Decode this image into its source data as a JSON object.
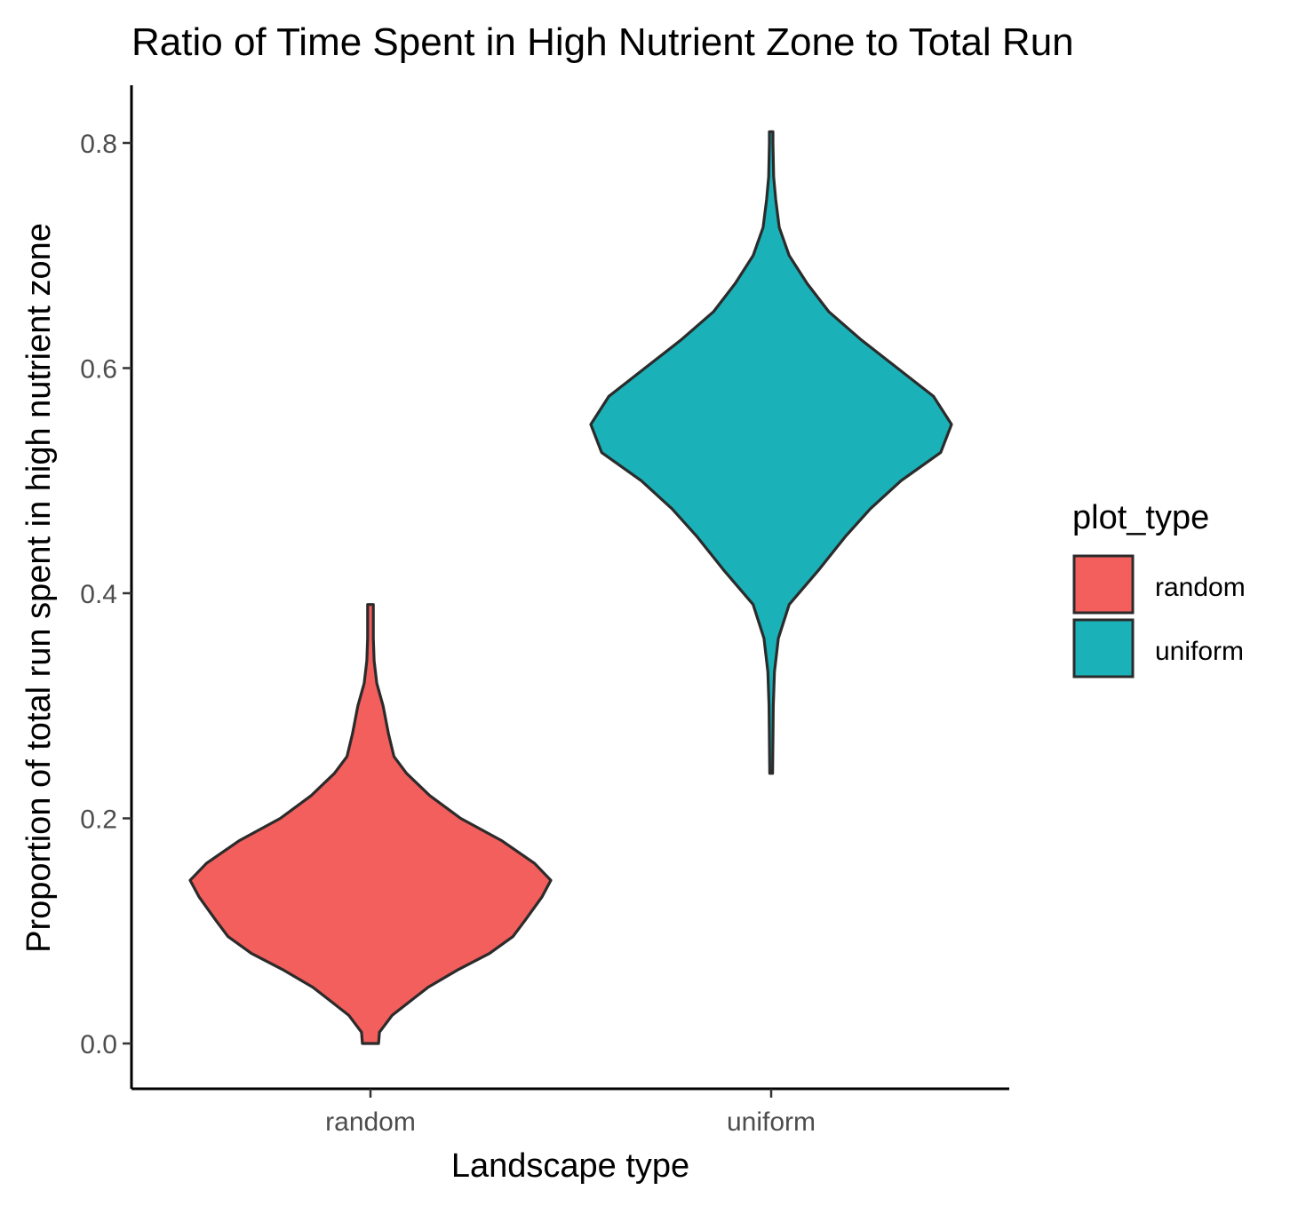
{
  "chart_data": {
    "type": "violin",
    "title": "Ratio of Time Spent in High Nutrient Zone to Total Run",
    "xlabel": "Landscape type",
    "ylabel": "Proportion of total run spent in high nutrient zone",
    "categories": [
      "random",
      "uniform"
    ],
    "ylim": [
      -0.04,
      0.85
    ],
    "yticks": [
      0.0,
      0.2,
      0.4,
      0.6,
      0.8
    ],
    "ytick_labels": [
      "0.0",
      "0.2",
      "0.4",
      "0.6",
      "0.8"
    ],
    "grid": false,
    "legend": {
      "title": "plot_type",
      "position": "right",
      "entries": [
        "random",
        "uniform"
      ]
    },
    "series": [
      {
        "category": "random",
        "color": "#F25F5C",
        "min": 0.0,
        "max": 0.39,
        "density_profile": [
          [
            0.0,
            0.045
          ],
          [
            0.01,
            0.05
          ],
          [
            0.025,
            0.12
          ],
          [
            0.04,
            0.24
          ],
          [
            0.05,
            0.32
          ],
          [
            0.065,
            0.48
          ],
          [
            0.08,
            0.66
          ],
          [
            0.095,
            0.79
          ],
          [
            0.11,
            0.86
          ],
          [
            0.13,
            0.95
          ],
          [
            0.145,
            1.0
          ],
          [
            0.16,
            0.91
          ],
          [
            0.18,
            0.73
          ],
          [
            0.2,
            0.5
          ],
          [
            0.22,
            0.33
          ],
          [
            0.24,
            0.2
          ],
          [
            0.255,
            0.13
          ],
          [
            0.275,
            0.1
          ],
          [
            0.3,
            0.07
          ],
          [
            0.32,
            0.035
          ],
          [
            0.34,
            0.02
          ],
          [
            0.36,
            0.016
          ],
          [
            0.38,
            0.016
          ],
          [
            0.39,
            0.016
          ]
        ]
      },
      {
        "category": "uniform",
        "color": "#1AB2B8",
        "min": 0.24,
        "max": 0.81,
        "density_profile": [
          [
            0.24,
            0.008
          ],
          [
            0.27,
            0.01
          ],
          [
            0.3,
            0.012
          ],
          [
            0.33,
            0.018
          ],
          [
            0.36,
            0.04
          ],
          [
            0.39,
            0.1
          ],
          [
            0.42,
            0.26
          ],
          [
            0.45,
            0.41
          ],
          [
            0.475,
            0.55
          ],
          [
            0.5,
            0.72
          ],
          [
            0.525,
            0.94
          ],
          [
            0.55,
            1.0
          ],
          [
            0.575,
            0.9
          ],
          [
            0.6,
            0.7
          ],
          [
            0.625,
            0.5
          ],
          [
            0.65,
            0.32
          ],
          [
            0.675,
            0.2
          ],
          [
            0.7,
            0.1
          ],
          [
            0.725,
            0.045
          ],
          [
            0.75,
            0.025
          ],
          [
            0.77,
            0.014
          ],
          [
            0.8,
            0.01
          ],
          [
            0.81,
            0.01
          ]
        ]
      }
    ]
  }
}
